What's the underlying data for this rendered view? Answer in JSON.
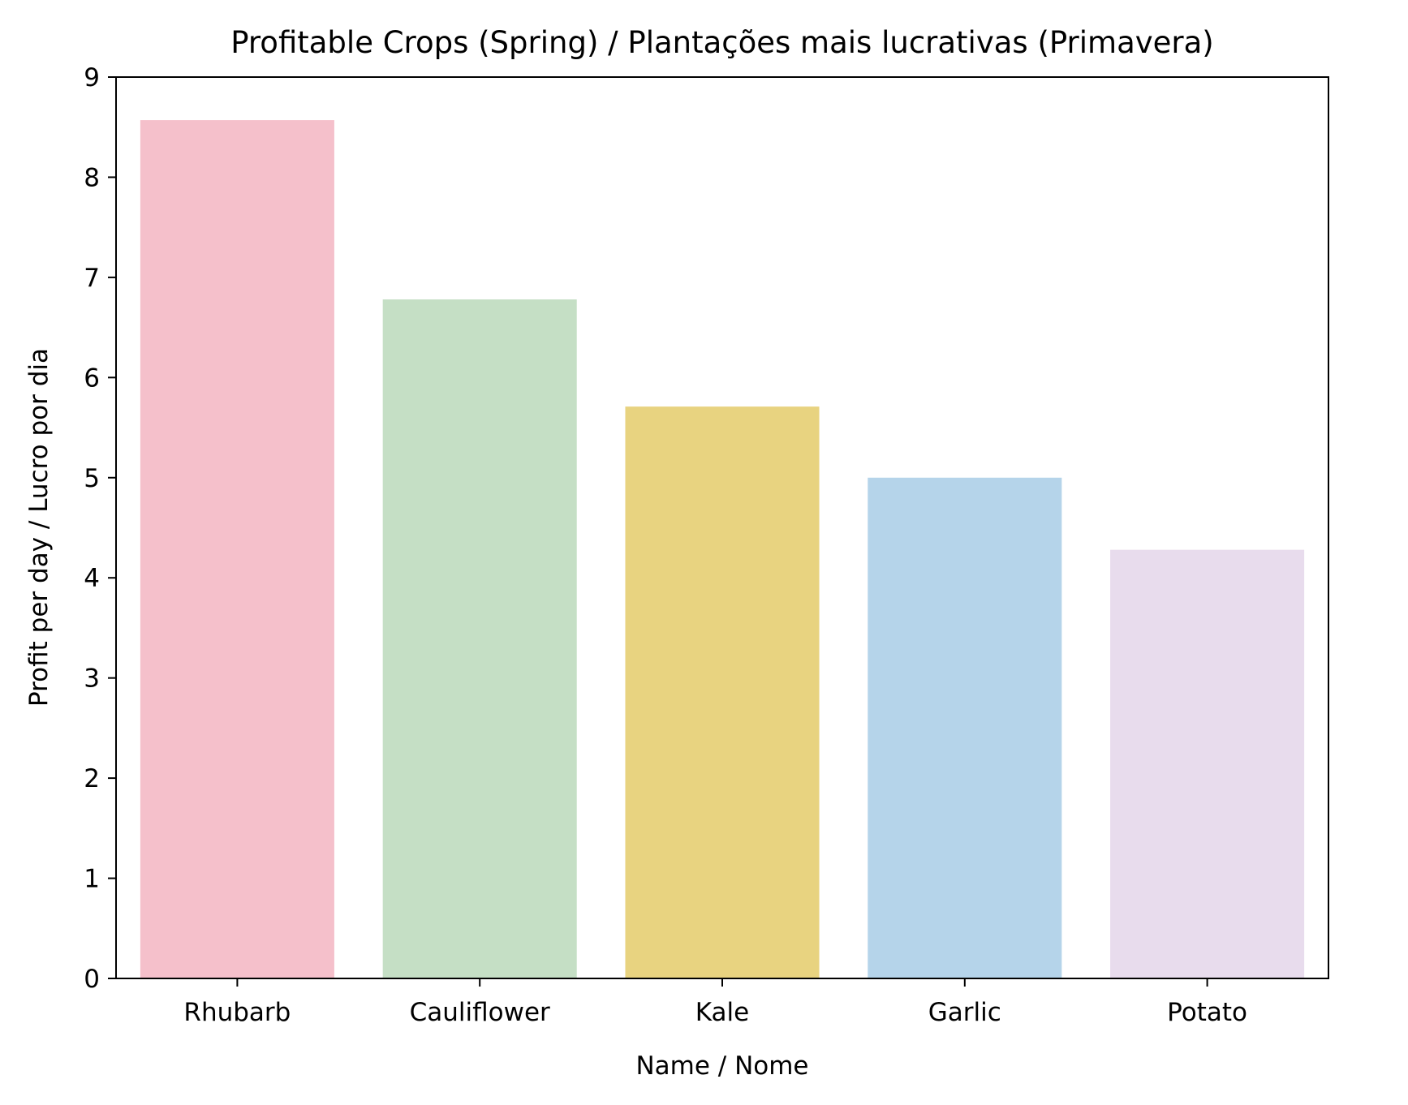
{
  "chart_data": {
    "type": "bar",
    "title": "Profitable Crops (Spring) / Plantações mais lucrativas (Primavera)",
    "xlabel": "Name / Nome",
    "ylabel": "Profit per day / Lucro por dia",
    "categories": [
      "Rhubarb",
      "Cauliflower",
      "Kale",
      "Garlic",
      "Potato"
    ],
    "values": [
      8.57,
      6.78,
      5.71,
      5.0,
      4.28
    ],
    "colors": [
      "#f5c0cb",
      "#c5dfc5",
      "#e8d380",
      "#b5d4ea",
      "#e8dced"
    ],
    "ylim": [
      0,
      9
    ],
    "yticks": [
      0,
      1,
      2,
      3,
      4,
      5,
      6,
      7,
      8,
      9
    ],
    "grid": false,
    "legend": "none"
  }
}
